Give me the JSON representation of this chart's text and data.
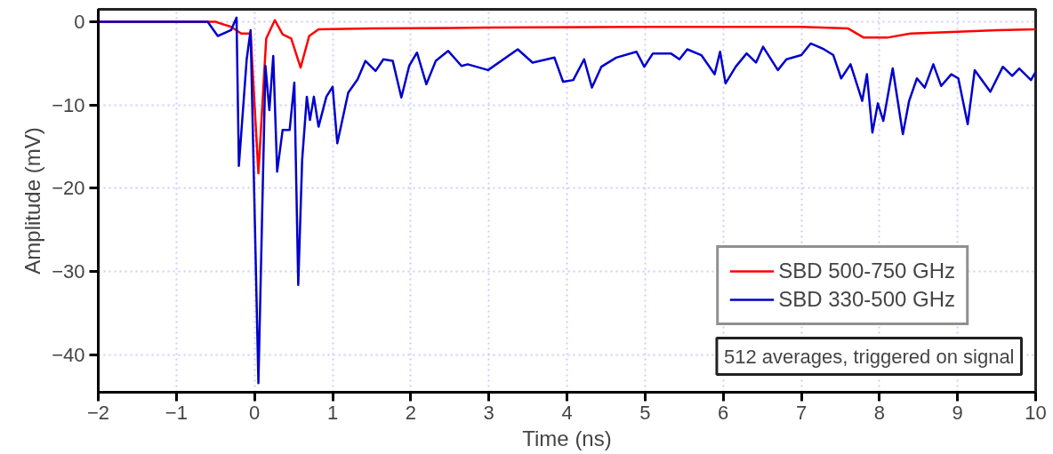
{
  "chart_data": {
    "type": "line",
    "xlabel": "Time (ns)",
    "ylabel": "Amplitude (mV)",
    "xlim": [
      -2,
      10
    ],
    "ylim": [
      -44.5,
      1.5
    ],
    "xticks": [
      -2,
      -1,
      0,
      1,
      2,
      3,
      4,
      5,
      6,
      7,
      8,
      9,
      10
    ],
    "yticks": [
      0,
      -10,
      -20,
      -30,
      -40
    ],
    "grid": true,
    "legend": "bottom right",
    "line_style": "solid",
    "marker": "none",
    "annotations": [
      "512 averages, triggered on signal"
    ],
    "series": [
      {
        "name": "SBD 500-750 GHz",
        "color": "#ff0000",
        "x": [
          -2,
          -0.5,
          -0.3,
          -0.17,
          -0.05,
          0.05,
          0.15,
          0.26,
          0.36,
          0.47,
          0.59,
          0.7,
          0.82,
          1.5,
          3,
          5,
          7,
          7.6,
          7.8,
          8.1,
          8.4,
          9,
          9.5,
          10
        ],
        "values": [
          0,
          0,
          -0.6,
          -1.4,
          -1.4,
          -18.2,
          -2.0,
          0.2,
          -1.5,
          -2.0,
          -5.5,
          -1.7,
          -0.9,
          -0.8,
          -0.7,
          -0.6,
          -0.6,
          -0.8,
          -1.9,
          -1.9,
          -1.4,
          -1.2,
          -1.0,
          -0.9
        ]
      },
      {
        "name": "SBD 330-500 GHz",
        "color": "#0000cc",
        "x": [
          -2,
          -0.6,
          -0.47,
          -0.3,
          -0.23,
          -0.2,
          -0.1,
          -0.05,
          0.05,
          0.14,
          0.19,
          0.24,
          0.29,
          0.36,
          0.45,
          0.51,
          0.56,
          0.61,
          0.67,
          0.71,
          0.76,
          0.82,
          0.92,
          1.0,
          1.06,
          1.2,
          1.32,
          1.42,
          1.55,
          1.65,
          1.77,
          1.88,
          1.98,
          2.08,
          2.2,
          2.32,
          2.48,
          2.65,
          2.73,
          2.99,
          3.37,
          3.56,
          3.84,
          3.95,
          4.08,
          4.22,
          4.32,
          4.44,
          4.63,
          4.89,
          4.99,
          5.1,
          5.33,
          5.44,
          5.54,
          5.72,
          5.89,
          5.96,
          6.03,
          6.16,
          6.3,
          6.42,
          6.51,
          6.7,
          6.81,
          7.0,
          7.12,
          7.29,
          7.41,
          7.51,
          7.63,
          7.78,
          7.84,
          7.91,
          7.98,
          8.05,
          8.17,
          8.3,
          8.38,
          8.48,
          8.58,
          8.69,
          8.79,
          8.92,
          9.01,
          9.13,
          9.22,
          9.42,
          9.58,
          9.7,
          9.79,
          9.94,
          10
        ],
        "values": [
          0,
          0,
          -1.7,
          -1.0,
          0.5,
          -17.3,
          -4.5,
          -1.0,
          -43.4,
          -5.3,
          -10.6,
          -4.1,
          -18.0,
          -13.0,
          -13.0,
          -7.3,
          -31.6,
          -16.6,
          -9.0,
          -11.8,
          -9.0,
          -12.6,
          -9.0,
          -7.8,
          -14.6,
          -8.5,
          -6.9,
          -4.7,
          -5.9,
          -4.5,
          -4.7,
          -9.1,
          -5.3,
          -3.7,
          -7.5,
          -4.7,
          -3.5,
          -5.3,
          -5.1,
          -5.8,
          -3.3,
          -4.9,
          -4.3,
          -7.2,
          -7.0,
          -4.5,
          -7.9,
          -5.4,
          -4.3,
          -3.6,
          -5.4,
          -3.8,
          -3.8,
          -4.5,
          -3.3,
          -4.0,
          -6.3,
          -3.6,
          -7.4,
          -5.4,
          -3.8,
          -4.9,
          -3.0,
          -5.8,
          -4.5,
          -4.0,
          -2.6,
          -3.3,
          -4.0,
          -6.8,
          -5.1,
          -9.5,
          -6.3,
          -13.3,
          -9.8,
          -11.9,
          -5.6,
          -13.5,
          -9.5,
          -6.8,
          -7.9,
          -5.1,
          -7.7,
          -6.3,
          -6.8,
          -12.3,
          -5.8,
          -8.4,
          -5.4,
          -6.5,
          -5.6,
          -7.0,
          -6.0
        ]
      }
    ]
  }
}
